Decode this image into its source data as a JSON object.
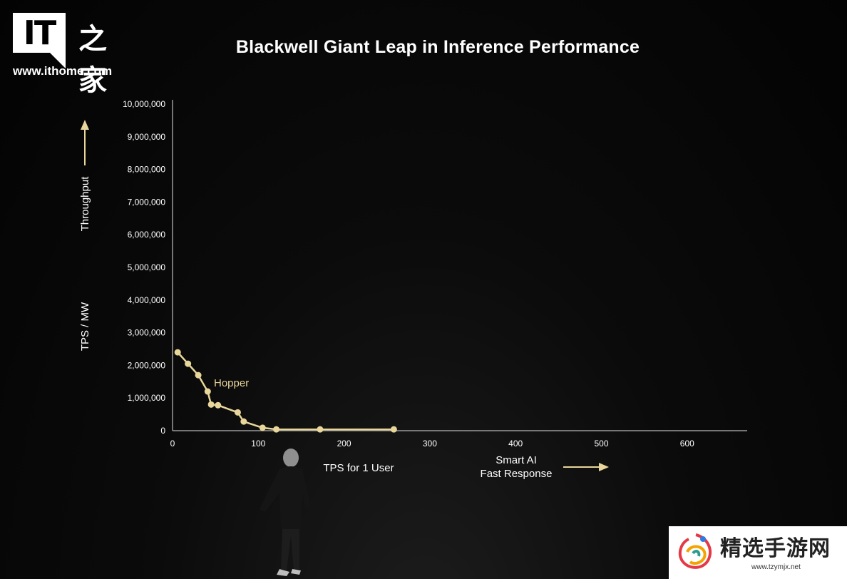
{
  "branding": {
    "logo_text": "IT",
    "logo_chinese": "之家",
    "url": "www.ithome.com"
  },
  "watermark": {
    "title": "精选手游网",
    "url": "www.tzymjx.net"
  },
  "colors": {
    "background": "#050505",
    "series": "#e8d69a",
    "axis": "#9a9a9a",
    "text": "#ffffff",
    "arrow": "#e8d69a"
  },
  "chart_data": {
    "type": "line",
    "title": "Blackwell Giant Leap in Inference Performance",
    "xlabel": "TPS for 1 User",
    "ylabel": "TPS / MW",
    "ylabel_arrow_text": "Throughput",
    "x_arrow_text": [
      "Smart AI",
      "Fast Response"
    ],
    "xlim": [
      0,
      670
    ],
    "ylim": [
      0,
      10000000
    ],
    "x_ticks": [
      0,
      100,
      200,
      300,
      400,
      500,
      600
    ],
    "x_tick_labels": [
      "0",
      "100",
      "200",
      "300",
      "400",
      "500",
      "600"
    ],
    "y_ticks": [
      0,
      1000000,
      2000000,
      3000000,
      4000000,
      5000000,
      6000000,
      7000000,
      8000000,
      9000000,
      10000000
    ],
    "y_tick_labels": [
      "0",
      "1,000,000",
      "2,000,000",
      "3,000,000",
      "4,000,000",
      "5,000,000",
      "6,000,000",
      "7,000,000",
      "8,000,000",
      "9,000,000",
      "10,000,000"
    ],
    "grid": false,
    "series": [
      {
        "name": "Hopper",
        "x": [
          6,
          18,
          30,
          41,
          45,
          53,
          76,
          83,
          105,
          121,
          172,
          258
        ],
        "y": [
          2400000,
          2050000,
          1700000,
          1200000,
          800000,
          780000,
          560000,
          280000,
          90000,
          40000,
          40000,
          40000
        ]
      }
    ]
  }
}
